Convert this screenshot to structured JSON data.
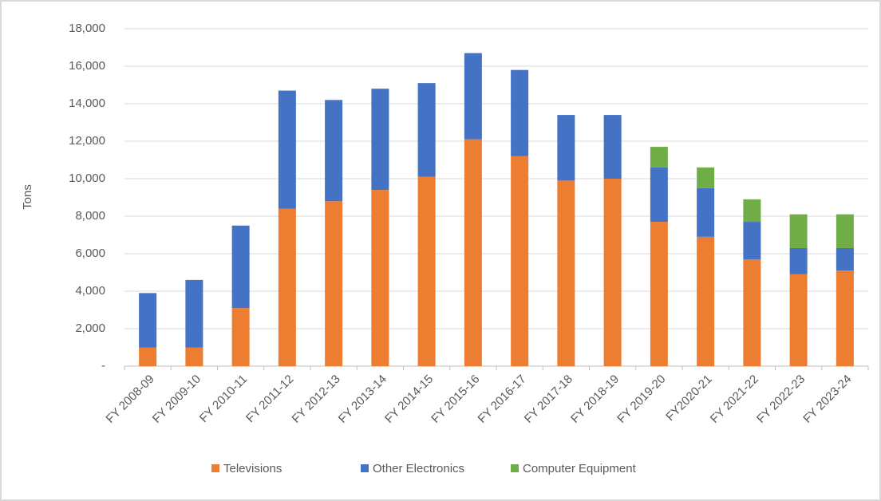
{
  "chart_data": {
    "type": "stacked_bar",
    "y_label": "Tons",
    "categories": [
      "FY 2008-09",
      "FY 2009-10",
      "FY 2010-11",
      "FY 2011-12",
      "FY 2012-13",
      "FY 2013-14",
      "FY 2014-15",
      "FY 2015-16",
      "FY 2016-17",
      "FY 2017-18",
      "FY 2018-19",
      "FY 2019-20",
      "FY2020-21",
      "FY 2021-22",
      "FY 2022-23",
      "FY 2023-24"
    ],
    "series": [
      {
        "name": "Televisions",
        "color": "#ed7d31",
        "values": [
          1000,
          1000,
          3100,
          8400,
          8800,
          9400,
          10100,
          12100,
          11200,
          9900,
          10000,
          7700,
          6900,
          5700,
          4900,
          5100
        ]
      },
      {
        "name": "Other Electronics",
        "color": "#4472c4",
        "values": [
          2900,
          3600,
          4400,
          6300,
          5400,
          5400,
          5000,
          4600,
          4600,
          3500,
          3400,
          2900,
          2600,
          2000,
          1400,
          1200
        ]
      },
      {
        "name": "Computer Equipment",
        "color": "#70ad47",
        "values": [
          null,
          null,
          null,
          null,
          null,
          null,
          null,
          null,
          null,
          null,
          null,
          1100,
          1100,
          1200,
          1800,
          1800
        ]
      }
    ],
    "ylim": [
      0,
      18000
    ],
    "yticks": [
      {
        "value": 0,
        "label": "-"
      },
      {
        "value": 2000,
        "label": "2,000"
      },
      {
        "value": 4000,
        "label": "4,000"
      },
      {
        "value": 6000,
        "label": "6,000"
      },
      {
        "value": 8000,
        "label": "8,000"
      },
      {
        "value": 10000,
        "label": "10,000"
      },
      {
        "value": 12000,
        "label": "12,000"
      },
      {
        "value": 14000,
        "label": "14,000"
      },
      {
        "value": 16000,
        "label": "16,000"
      },
      {
        "value": 18000,
        "label": "18,000"
      }
    ],
    "grid": true,
    "legend": "bottom"
  }
}
